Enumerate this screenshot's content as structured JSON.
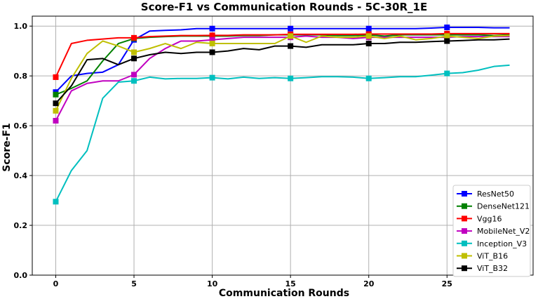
{
  "chart_data": {
    "type": "line",
    "title": "Score-F1 vs Communication Rounds - 5C-30R_1E",
    "xlabel": "Communication Rounds",
    "ylabel": "Score-F1",
    "xlim": [
      -1.5,
      30.5
    ],
    "ylim": [
      0,
      1.04
    ],
    "xticks": [
      0,
      5,
      10,
      15,
      20,
      25
    ],
    "yticks": [
      0.0,
      0.2,
      0.4,
      0.6,
      0.8,
      1.0
    ],
    "xtick_labels": [
      "0",
      "5",
      "10",
      "15",
      "20",
      "25"
    ],
    "ytick_labels": [
      "0.0",
      "0.2",
      "0.4",
      "0.6",
      "0.8",
      "1.0"
    ],
    "grid": true,
    "legend_position": "bottom-right",
    "marker_x": [
      0,
      5,
      10,
      15,
      20,
      25
    ],
    "x": [
      0,
      1,
      2,
      3,
      4,
      5,
      6,
      7,
      8,
      9,
      10,
      11,
      12,
      13,
      14,
      15,
      16,
      17,
      18,
      19,
      20,
      21,
      22,
      23,
      24,
      25,
      26,
      27,
      28,
      29
    ],
    "series": [
      {
        "name": "ResNet50",
        "color": "#0000ff",
        "values": [
          0.735,
          0.8,
          0.81,
          0.815,
          0.845,
          0.945,
          0.98,
          0.983,
          0.985,
          0.99,
          0.99,
          0.99,
          0.99,
          0.99,
          0.99,
          0.99,
          0.99,
          0.99,
          0.99,
          0.99,
          0.99,
          0.99,
          0.99,
          0.99,
          0.992,
          0.995,
          0.995,
          0.995,
          0.993,
          0.993
        ]
      },
      {
        "name": "DenseNet121",
        "color": "#008000",
        "values": [
          0.725,
          0.75,
          0.78,
          0.86,
          0.93,
          0.95,
          0.955,
          0.958,
          0.96,
          0.96,
          0.96,
          0.96,
          0.962,
          0.962,
          0.965,
          0.965,
          0.965,
          0.965,
          0.962,
          0.962,
          0.965,
          0.96,
          0.965,
          0.965,
          0.965,
          0.965,
          0.965,
          0.965,
          0.962,
          0.965
        ]
      },
      {
        "name": "Vgg16",
        "color": "#ff0000",
        "values": [
          0.795,
          0.93,
          0.943,
          0.948,
          0.953,
          0.953,
          0.958,
          0.96,
          0.962,
          0.962,
          0.963,
          0.963,
          0.965,
          0.965,
          0.965,
          0.967,
          0.967,
          0.967,
          0.967,
          0.967,
          0.968,
          0.968,
          0.968,
          0.968,
          0.968,
          0.97,
          0.97,
          0.97,
          0.97,
          0.97
        ]
      },
      {
        "name": "MobileNet_V2",
        "color": "#c000c0",
        "values": [
          0.62,
          0.74,
          0.77,
          0.78,
          0.78,
          0.805,
          0.87,
          0.91,
          0.94,
          0.94,
          0.945,
          0.95,
          0.955,
          0.955,
          0.955,
          0.955,
          0.96,
          0.955,
          0.955,
          0.95,
          0.955,
          0.955,
          0.955,
          0.955,
          0.955,
          0.955,
          0.958,
          0.958,
          0.958,
          0.958
        ]
      },
      {
        "name": "Inception_V3",
        "color": "#00bfbf",
        "values": [
          0.295,
          0.42,
          0.5,
          0.71,
          0.775,
          0.78,
          0.795,
          0.788,
          0.79,
          0.79,
          0.793,
          0.788,
          0.795,
          0.79,
          0.793,
          0.79,
          0.793,
          0.797,
          0.797,
          0.795,
          0.79,
          0.793,
          0.797,
          0.797,
          0.803,
          0.81,
          0.813,
          0.823,
          0.838,
          0.843
        ]
      },
      {
        "name": "ViT_B16",
        "color": "#bfbf00",
        "values": [
          0.66,
          0.79,
          0.89,
          0.94,
          0.92,
          0.895,
          0.91,
          0.93,
          0.91,
          0.935,
          0.93,
          0.93,
          0.93,
          0.93,
          0.93,
          0.96,
          0.935,
          0.96,
          0.955,
          0.955,
          0.96,
          0.95,
          0.96,
          0.945,
          0.95,
          0.96,
          0.955,
          0.95,
          0.96,
          0.962
        ]
      },
      {
        "name": "ViT_B32",
        "color": "#000000",
        "values": [
          0.69,
          0.76,
          0.865,
          0.87,
          0.845,
          0.87,
          0.885,
          0.895,
          0.89,
          0.895,
          0.895,
          0.9,
          0.91,
          0.905,
          0.92,
          0.92,
          0.915,
          0.925,
          0.925,
          0.925,
          0.93,
          0.93,
          0.935,
          0.935,
          0.938,
          0.94,
          0.942,
          0.945,
          0.945,
          0.948
        ]
      }
    ]
  }
}
